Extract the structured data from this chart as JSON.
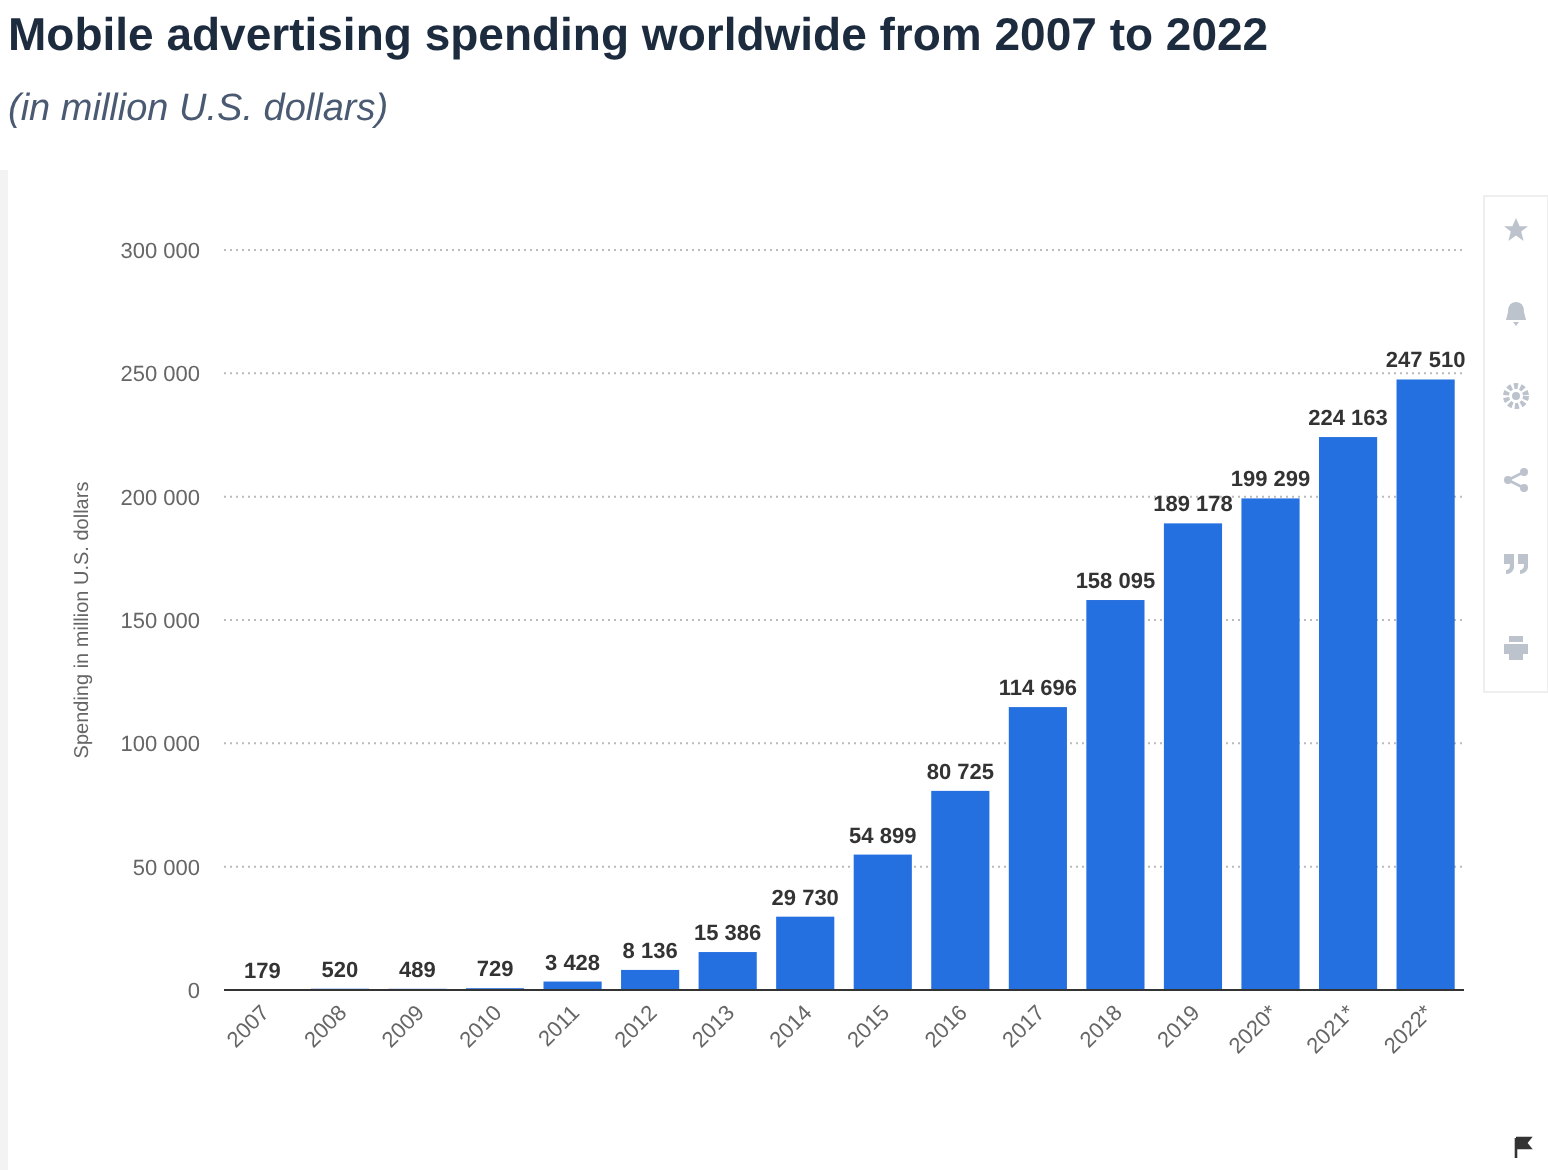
{
  "chart_data": {
    "type": "bar",
    "title": "Mobile advertising spending worldwide from 2007 to 2022",
    "subtitle": "(in million U.S. dollars)",
    "ylabel": "Spending in million U.S. dollars",
    "categories": [
      "2007",
      "2008",
      "2009",
      "2010",
      "2011",
      "2012",
      "2013",
      "2014",
      "2015",
      "2016",
      "2017",
      "2018",
      "2019",
      "2020*",
      "2021*",
      "2022*"
    ],
    "values": [
      179,
      520,
      489,
      729,
      3428,
      8136,
      15386,
      29730,
      54899,
      80725,
      114696,
      158095,
      189178,
      199299,
      224163,
      247510
    ],
    "value_labels": [
      "179",
      "520",
      "489",
      "729",
      "3 428",
      "8 136",
      "15 386",
      "29 730",
      "54 899",
      "80 725",
      "114 696",
      "158 095",
      "189 178",
      "199 299",
      "224 163",
      "247 510"
    ],
    "color": "#2570e0",
    "ylim": [
      0,
      300000
    ],
    "yticks": [
      0,
      {
        "value": 50000,
        "label": "50 000"
      },
      {
        "value": 100000,
        "label": "100 000"
      },
      {
        "value": 150000,
        "label": "150 000"
      },
      {
        "value": 200000,
        "label": "200 000"
      },
      {
        "value": 250000,
        "label": "250 000"
      },
      {
        "value": 300000,
        "label": "300 000"
      }
    ],
    "grid": "y"
  }
}
